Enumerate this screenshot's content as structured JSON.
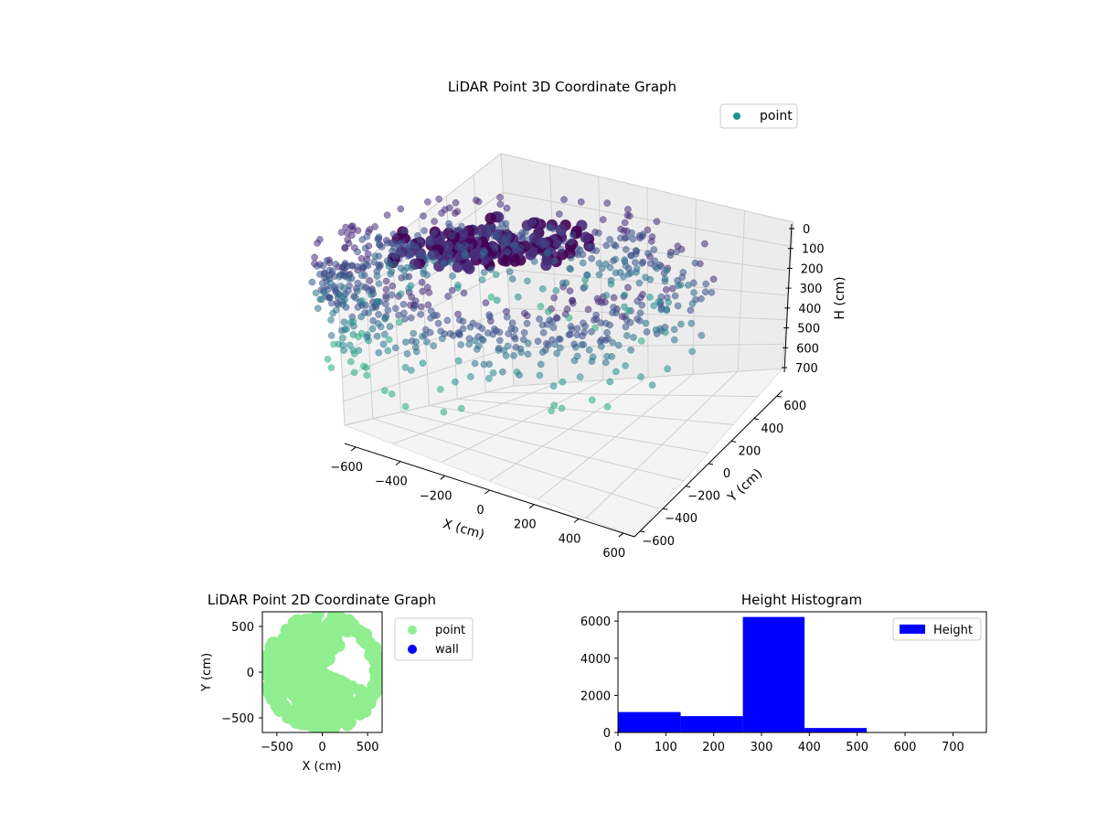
{
  "colors": {
    "point": "#1f9391",
    "viridis": [
      "#440154",
      "#472c7a",
      "#3b518b",
      "#2c718e",
      "#21908d",
      "#27ad81",
      "#5cc863"
    ],
    "scatter2d": "#90ee90",
    "wall": "#0000ff",
    "hist": "#0000ff",
    "pane": "#f2f2f2",
    "grid": "#d0d0d0"
  },
  "chart_data": [
    {
      "type": "scatter",
      "projection": "3d",
      "title": "LiDAR Point 3D Coordinate Graph",
      "xlabel": "X (cm)",
      "ylabel": "Y (cm)",
      "zlabel": "H (cm)",
      "xticks": [
        "−600",
        "−400",
        "−200",
        "0",
        "200",
        "400",
        "600"
      ],
      "yticks": [
        "−600",
        "−400",
        "−200",
        "0",
        "200",
        "400",
        "600"
      ],
      "zticks": [
        "0",
        "100",
        "200",
        "300",
        "400",
        "500",
        "600",
        "700"
      ],
      "xlim": [
        -650,
        650
      ],
      "ylim": [
        -650,
        650
      ],
      "zlim": [
        0,
        740
      ],
      "zaxis_inverted": true,
      "legend": {
        "entries": [
          "point"
        ],
        "placement": "top-right"
      },
      "grid": true,
      "colormap": "viridis",
      "shape": "ring of points, radius about 500-650 cm, heights concentrated 150-400 cm, opening toward +X / +Y"
    },
    {
      "type": "scatter",
      "title": "LiDAR Point 2D Coordinate Graph",
      "xlabel": "X (cm)",
      "ylabel": "Y (cm)",
      "xticks": [
        "−500",
        "0",
        "500"
      ],
      "yticks": [
        "−500",
        "0",
        "500"
      ],
      "xlim": [
        -660,
        660
      ],
      "ylim": [
        -660,
        660
      ],
      "legend": {
        "entries": [
          "point",
          "wall"
        ],
        "placement": "outside-right"
      },
      "series": [
        {
          "name": "point",
          "shape": "filled disc of radius about 640 cm with a wedge cut out toward +X"
        },
        {
          "name": "wall",
          "values": []
        }
      ]
    },
    {
      "type": "bar",
      "title": "Height Histogram",
      "xlabel": "",
      "ylabel": "",
      "xticks": [
        "0",
        "100",
        "200",
        "300",
        "400",
        "500",
        "600",
        "700"
      ],
      "yticks": [
        "0",
        "2000",
        "4000",
        "6000"
      ],
      "xlim": [
        0,
        770
      ],
      "ylim": [
        0,
        6500
      ],
      "bin_edges": [
        0,
        131,
        261,
        390,
        520,
        650,
        770
      ],
      "values": [
        1100,
        880,
        6220,
        240,
        0,
        0
      ],
      "legend": {
        "entries": [
          "Height"
        ],
        "placement": "top-right"
      }
    }
  ]
}
